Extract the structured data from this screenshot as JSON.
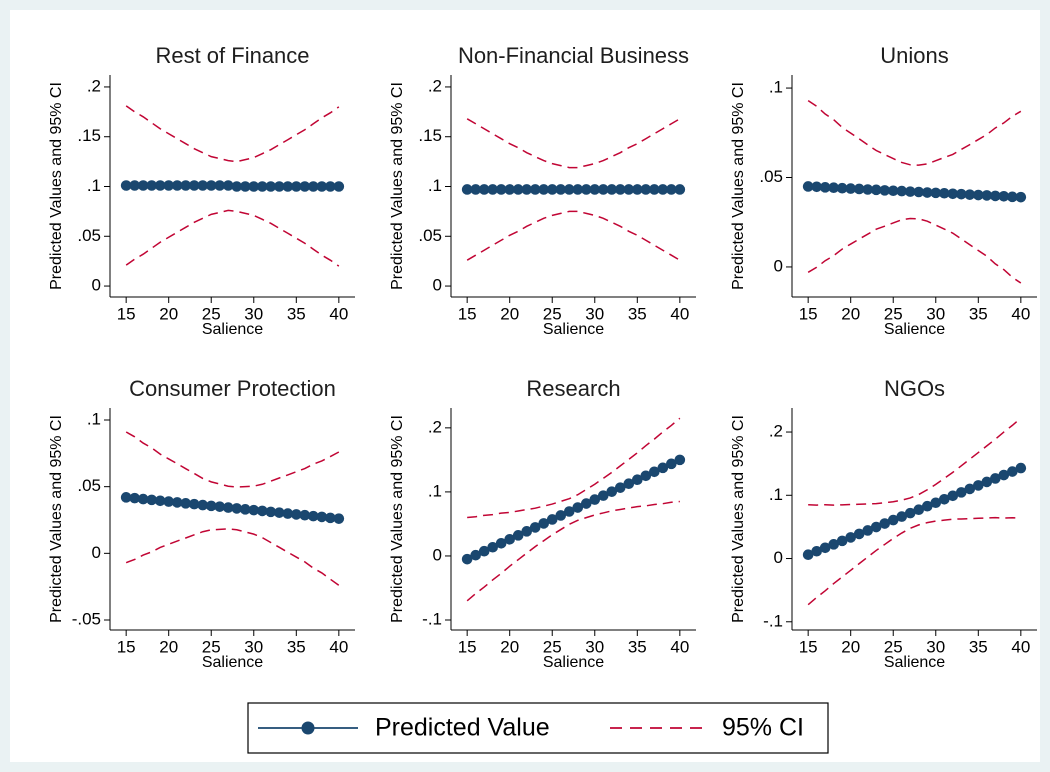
{
  "chart_data": [
    {
      "type": "line",
      "title": "Rest of Finance",
      "xlabel": "Salience",
      "ylabel": "Predicted Values and 95% CI",
      "x": [
        15,
        16,
        17,
        18,
        19,
        20,
        21,
        22,
        23,
        24,
        25,
        26,
        27,
        28,
        29,
        30,
        31,
        32,
        33,
        34,
        35,
        36,
        37,
        38,
        39,
        40
      ],
      "series": [
        {
          "color": "#1a476f",
          "values": [
            0.101,
            0.101,
            0.101,
            0.101,
            0.101,
            0.101,
            0.101,
            0.101,
            0.101,
            0.101,
            0.101,
            0.101,
            0.101,
            0.1,
            0.1,
            0.1,
            0.1,
            0.1,
            0.1,
            0.1,
            0.1,
            0.1,
            0.1,
            0.1,
            0.1,
            0.1
          ]
        },
        {
          "color": "#c10534",
          "dashed": true,
          "values": [
            0.181,
            0.175,
            0.17,
            0.164,
            0.158,
            0.153,
            0.148,
            0.143,
            0.138,
            0.134,
            0.13,
            0.128,
            0.126,
            0.125,
            0.127,
            0.129,
            0.133,
            0.137,
            0.142,
            0.147,
            0.152,
            0.157,
            0.163,
            0.169,
            0.174,
            0.18
          ]
        },
        {
          "color": "#c10534",
          "dashed": true,
          "values": [
            0.021,
            0.027,
            0.032,
            0.038,
            0.044,
            0.049,
            0.054,
            0.059,
            0.064,
            0.068,
            0.072,
            0.074,
            0.076,
            0.075,
            0.073,
            0.071,
            0.067,
            0.063,
            0.058,
            0.053,
            0.048,
            0.043,
            0.037,
            0.031,
            0.026,
            0.02
          ]
        }
      ],
      "xlim": [
        13.1,
        41.9
      ],
      "xticks": [
        15,
        20,
        25,
        30,
        35,
        40
      ],
      "ylim": [
        -0.011,
        0.212
      ],
      "yticks": [
        0,
        {
          "value": 0.05,
          "label": ".05"
        },
        {
          "value": 0.1,
          "label": ".1"
        },
        {
          "value": 0.15,
          "label": ".15"
        },
        {
          "value": 0.2,
          "label": ".2"
        }
      ]
    },
    {
      "type": "line",
      "title": "Non-Financial Business",
      "xlabel": "Salience",
      "ylabel": "Predicted Values and 95% CI",
      "x": [
        15,
        16,
        17,
        18,
        19,
        20,
        21,
        22,
        23,
        24,
        25,
        26,
        27,
        28,
        29,
        30,
        31,
        32,
        33,
        34,
        35,
        36,
        37,
        38,
        39,
        40
      ],
      "series": [
        {
          "color": "#1a476f",
          "values": [
            0.097,
            0.097,
            0.097,
            0.097,
            0.097,
            0.097,
            0.097,
            0.097,
            0.097,
            0.097,
            0.097,
            0.097,
            0.097,
            0.097,
            0.097,
            0.097,
            0.097,
            0.097,
            0.097,
            0.097,
            0.097,
            0.097,
            0.097,
            0.097,
            0.097,
            0.097
          ]
        },
        {
          "color": "#c10534",
          "dashed": true,
          "values": [
            0.168,
            0.163,
            0.158,
            0.153,
            0.148,
            0.143,
            0.139,
            0.134,
            0.13,
            0.126,
            0.123,
            0.121,
            0.119,
            0.119,
            0.121,
            0.123,
            0.126,
            0.13,
            0.134,
            0.139,
            0.143,
            0.148,
            0.153,
            0.158,
            0.163,
            0.168
          ]
        },
        {
          "color": "#c10534",
          "dashed": true,
          "values": [
            0.026,
            0.031,
            0.036,
            0.041,
            0.046,
            0.051,
            0.055,
            0.06,
            0.064,
            0.068,
            0.071,
            0.073,
            0.075,
            0.075,
            0.073,
            0.071,
            0.068,
            0.064,
            0.06,
            0.055,
            0.051,
            0.046,
            0.041,
            0.036,
            0.031,
            0.026
          ]
        }
      ],
      "xlim": [
        13.1,
        41.9
      ],
      "xticks": [
        15,
        20,
        25,
        30,
        35,
        40
      ],
      "ylim": [
        -0.011,
        0.212
      ],
      "yticks": [
        0,
        {
          "value": 0.05,
          "label": ".05"
        },
        {
          "value": 0.1,
          "label": ".1"
        },
        {
          "value": 0.15,
          "label": ".15"
        },
        {
          "value": 0.2,
          "label": ".2"
        }
      ]
    },
    {
      "type": "line",
      "title": "Unions",
      "xlabel": "Salience",
      "ylabel": "Predicted Values and 95% CI",
      "x": [
        15,
        16,
        17,
        18,
        19,
        20,
        21,
        22,
        23,
        24,
        25,
        26,
        27,
        28,
        29,
        30,
        31,
        32,
        33,
        34,
        35,
        36,
        37,
        38,
        39,
        40
      ],
      "series": [
        {
          "color": "#1a476f",
          "values": [
            0.045,
            0.0448,
            0.0445,
            0.0443,
            0.044,
            0.0438,
            0.0436,
            0.0433,
            0.0431,
            0.0428,
            0.0426,
            0.0424,
            0.0421,
            0.0419,
            0.0416,
            0.0414,
            0.0412,
            0.0409,
            0.0407,
            0.0404,
            0.0402,
            0.04,
            0.0397,
            0.0395,
            0.0392,
            0.039
          ]
        },
        {
          "color": "#c10534",
          "dashed": true,
          "values": [
            0.093,
            0.0898,
            0.0855,
            0.0823,
            0.078,
            0.0748,
            0.0716,
            0.0683,
            0.0651,
            0.0628,
            0.0606,
            0.0584,
            0.0571,
            0.0569,
            0.0576,
            0.0594,
            0.0612,
            0.0629,
            0.0657,
            0.0684,
            0.0712,
            0.074,
            0.0777,
            0.0805,
            0.0842,
            0.087
          ]
        },
        {
          "color": "#c10534",
          "dashed": true,
          "values": [
            -0.003,
            -0.0002,
            0.0035,
            0.0063,
            0.01,
            0.0128,
            0.0156,
            0.0183,
            0.0211,
            0.0228,
            0.0246,
            0.0264,
            0.0271,
            0.0269,
            0.0256,
            0.0234,
            0.0212,
            0.0189,
            0.0157,
            0.0124,
            0.0092,
            0.006,
            0.0017,
            -0.0015,
            -0.0058,
            -0.009
          ]
        }
      ],
      "xlim": [
        13.1,
        41.9
      ],
      "xticks": [
        15,
        20,
        25,
        30,
        35,
        40
      ],
      "ylim": [
        -0.0168,
        0.1073
      ],
      "yticks": [
        0,
        {
          "value": 0.05,
          "label": ".05"
        },
        {
          "value": 0.1,
          "label": ".1"
        }
      ]
    },
    {
      "type": "line",
      "title": "Consumer Protection",
      "xlabel": "Salience",
      "ylabel": "Predicted Values and 95% CI",
      "x": [
        15,
        16,
        17,
        18,
        19,
        20,
        21,
        22,
        23,
        24,
        25,
        26,
        27,
        28,
        29,
        30,
        31,
        32,
        33,
        34,
        35,
        36,
        37,
        38,
        39,
        40
      ],
      "series": [
        {
          "color": "#1a476f",
          "values": [
            0.042,
            0.0414,
            0.0407,
            0.0401,
            0.0394,
            0.0388,
            0.0382,
            0.0375,
            0.0369,
            0.0362,
            0.0356,
            0.035,
            0.0343,
            0.0337,
            0.033,
            0.0324,
            0.0318,
            0.0311,
            0.0305,
            0.0298,
            0.0292,
            0.0286,
            0.0279,
            0.0273,
            0.0266,
            0.026
          ]
        },
        {
          "color": "#c10534",
          "dashed": true,
          "values": [
            0.091,
            0.0874,
            0.0827,
            0.0791,
            0.0744,
            0.0708,
            0.0672,
            0.0635,
            0.0599,
            0.0562,
            0.0536,
            0.052,
            0.0503,
            0.0497,
            0.05,
            0.0504,
            0.0518,
            0.0541,
            0.0565,
            0.0588,
            0.0612,
            0.0636,
            0.0669,
            0.0693,
            0.0726,
            0.076
          ]
        },
        {
          "color": "#c10534",
          "dashed": true,
          "values": [
            -0.007,
            -0.0046,
            -0.0013,
            0.0011,
            0.0044,
            0.0068,
            0.0092,
            0.0115,
            0.0139,
            0.0162,
            0.0176,
            0.018,
            0.0183,
            0.0177,
            0.016,
            0.0144,
            0.0118,
            0.0081,
            0.0045,
            0.0008,
            -0.0028,
            -0.0064,
            -0.0111,
            -0.0147,
            -0.0194,
            -0.024
          ]
        }
      ],
      "xlim": [
        13.1,
        41.9
      ],
      "xticks": [
        15,
        20,
        25,
        30,
        35,
        40
      ],
      "ylim": [
        -0.0575,
        0.109
      ],
      "yticks": [
        {
          "value": -0.05,
          "label": "-.05"
        },
        0,
        {
          "value": 0.05,
          "label": ".05"
        },
        {
          "value": 0.1,
          "label": ".1"
        }
      ]
    },
    {
      "type": "line",
      "title": "Research",
      "xlabel": "Salience",
      "ylabel": "Predicted Values and 95% CI",
      "x": [
        15,
        16,
        17,
        18,
        19,
        20,
        21,
        22,
        23,
        24,
        25,
        26,
        27,
        28,
        29,
        30,
        31,
        32,
        33,
        34,
        35,
        36,
        37,
        38,
        39,
        40
      ],
      "series": [
        {
          "color": "#1a476f",
          "values": [
            -0.005,
            0.0012,
            0.0074,
            0.0136,
            0.0198,
            0.026,
            0.0322,
            0.0384,
            0.0446,
            0.0508,
            0.057,
            0.0632,
            0.0694,
            0.0756,
            0.0818,
            0.088,
            0.0942,
            0.1004,
            0.1066,
            0.1128,
            0.119,
            0.1252,
            0.1314,
            0.1376,
            0.1438,
            0.15
          ]
        },
        {
          "color": "#c10534",
          "dashed": true,
          "values": [
            0.06,
            0.0612,
            0.0634,
            0.0646,
            0.0668,
            0.068,
            0.0702,
            0.0724,
            0.0746,
            0.0778,
            0.081,
            0.0852,
            0.0894,
            0.0956,
            0.1038,
            0.112,
            0.1212,
            0.1304,
            0.1406,
            0.1508,
            0.161,
            0.1722,
            0.1824,
            0.1936,
            0.2038,
            0.215
          ]
        },
        {
          "color": "#c10534",
          "dashed": true,
          "values": [
            -0.07,
            -0.0588,
            -0.0486,
            -0.0374,
            -0.0272,
            -0.016,
            -0.0058,
            0.0044,
            0.0146,
            0.0238,
            0.033,
            0.0412,
            0.0494,
            0.0556,
            0.0598,
            0.064,
            0.0672,
            0.0704,
            0.0726,
            0.0748,
            0.077,
            0.0782,
            0.0804,
            0.0816,
            0.0838,
            0.085
          ]
        }
      ],
      "xlim": [
        13.1,
        41.9
      ],
      "xticks": [
        15,
        20,
        25,
        30,
        35,
        40
      ],
      "ylim": [
        -0.1156,
        0.231
      ],
      "yticks": [
        {
          "value": -0.1,
          "label": "-.1"
        },
        0,
        {
          "value": 0.1,
          "label": ".1"
        },
        {
          "value": 0.2,
          "label": ".2"
        }
      ]
    },
    {
      "type": "line",
      "title": "NGOs",
      "xlabel": "Salience",
      "ylabel": "Predicted Values and 95% CI",
      "x": [
        15,
        16,
        17,
        18,
        19,
        20,
        21,
        22,
        23,
        24,
        25,
        26,
        27,
        28,
        29,
        30,
        31,
        32,
        33,
        34,
        35,
        36,
        37,
        38,
        39,
        40
      ],
      "series": [
        {
          "color": "#1a476f",
          "values": [
            0.006,
            0.0115,
            0.017,
            0.0224,
            0.0279,
            0.0334,
            0.0389,
            0.0444,
            0.0498,
            0.0553,
            0.0608,
            0.0663,
            0.0718,
            0.0772,
            0.0827,
            0.0882,
            0.0937,
            0.0992,
            0.1046,
            0.1101,
            0.1156,
            0.1211,
            0.1266,
            0.132,
            0.1375,
            0.143
          ]
        },
        {
          "color": "#c10534",
          "dashed": true,
          "values": [
            0.085,
            0.0845,
            0.085,
            0.0844,
            0.0849,
            0.0854,
            0.0859,
            0.0864,
            0.0868,
            0.0883,
            0.0898,
            0.0923,
            0.0958,
            0.1012,
            0.1087,
            0.1172,
            0.1267,
            0.1362,
            0.1466,
            0.1571,
            0.1676,
            0.1781,
            0.1886,
            0.2,
            0.2105,
            0.222
          ]
        },
        {
          "color": "#c10534",
          "dashed": true,
          "values": [
            -0.073,
            -0.0615,
            -0.051,
            -0.0396,
            -0.0291,
            -0.0186,
            -0.0081,
            0.0024,
            0.0128,
            0.0223,
            0.0318,
            0.0403,
            0.0478,
            0.0532,
            0.0567,
            0.0592,
            0.0607,
            0.0622,
            0.0626,
            0.0631,
            0.0636,
            0.0641,
            0.0646,
            0.064,
            0.0645,
            0.064
          ]
        }
      ],
      "xlim": [
        13.1,
        41.9
      ],
      "xticks": [
        15,
        20,
        25,
        30,
        35,
        40
      ],
      "ylim": [
        -0.113,
        0.238
      ],
      "yticks": [
        {
          "value": -0.1,
          "label": "-.1"
        },
        0,
        {
          "value": 0.1,
          "label": ".1"
        },
        {
          "value": 0.2,
          "label": ".2"
        }
      ]
    }
  ],
  "legend": [
    {
      "name": "Predicted Value",
      "color": "#1a476f"
    },
    {
      "name": "95% CI",
      "color": "#c10534",
      "dashed": true
    }
  ]
}
